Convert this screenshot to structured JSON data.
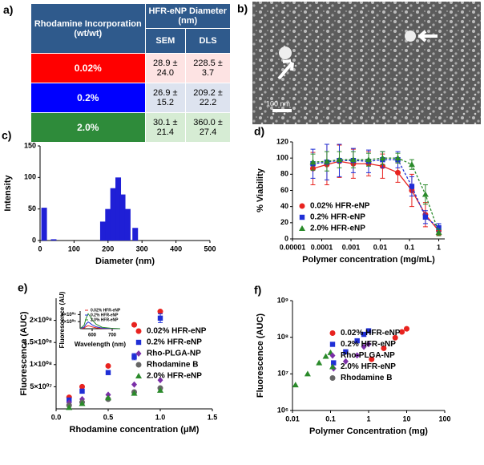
{
  "table": {
    "panel_label": "a)",
    "header": [
      "Rhodamine Incorporation (wt/wt)",
      "HFR-eNP Diameter (nm)"
    ],
    "subheader": [
      "SEM",
      "DLS"
    ],
    "rows": [
      [
        "0.02%",
        "28.9 ± 24.0",
        "228.5 ± 3.7"
      ],
      [
        "0.2%",
        "26.9 ± 15.2",
        "209.2 ± 22.2"
      ],
      [
        "2.0%",
        "30.1 ± 21.4",
        "360.0 ± 27.4"
      ]
    ],
    "row_colors": [
      "#ff0000",
      "#0000ff",
      "#2e8b3a"
    ],
    "cell_colors": [
      "#fde3e3",
      "#dde3ef",
      "#d6ecd4"
    ]
  },
  "image": {
    "panel_label": "b)",
    "scale_label": "100 nm"
  },
  "chart_data": [
    {
      "type": "bar",
      "panel_label": "c)",
      "x_label": "Diameter (nm)",
      "y_label": "Intensity",
      "color": "#1f1fd6",
      "x": [
        12,
        40,
        185,
        200,
        215,
        230,
        243,
        258,
        280
      ],
      "values": [
        52,
        2,
        30,
        50,
        83,
        100,
        73,
        50,
        20
      ],
      "xlim": [
        0,
        500
      ],
      "xticks": [
        0,
        100,
        200,
        300,
        400,
        500
      ],
      "ylim": [
        0,
        150
      ],
      "yticks": [
        0,
        50,
        100,
        150
      ]
    },
    {
      "type": "scatter",
      "panel_label": "d)",
      "x_label": "Polymer concentration (mg/mL)",
      "y_label": "% Viability",
      "xlog": true,
      "connect": "dashed",
      "legend": "lower left",
      "x": [
        5e-05,
        0.00015,
        0.0004,
        0.0012,
        0.004,
        0.012,
        0.04,
        0.12,
        0.35,
        1
      ],
      "series": [
        {
          "name": "0.02% HFR-eNP",
          "color": "#e8231f",
          "marker": "circle",
          "values": [
            87,
            92,
            96,
            93,
            93,
            90,
            82,
            60,
            30,
            10
          ],
          "errors": [
            20,
            25,
            20,
            18,
            15,
            15,
            12,
            20,
            15,
            5
          ]
        },
        {
          "name": "0.2% HFR-eNP",
          "color": "#1f2fd6",
          "marker": "square",
          "values": [
            93,
            95,
            97,
            97,
            96,
            98,
            98,
            65,
            27,
            14
          ],
          "errors": [
            18,
            22,
            20,
            15,
            14,
            10,
            10,
            12,
            8,
            5
          ]
        },
        {
          "name": "2.0% HFR-eNP",
          "color": "#2a8a2a",
          "marker": "triangle",
          "values": [
            95,
            96,
            98,
            98,
            98,
            100,
            100,
            92,
            55,
            8
          ],
          "errors": [
            10,
            12,
            10,
            10,
            8,
            8,
            6,
            6,
            12,
            4
          ]
        }
      ],
      "xlim": [
        1e-05,
        1.6
      ],
      "xticks": [
        1e-05,
        0.0001,
        0.001,
        0.01,
        0.1,
        1
      ],
      "ylim": [
        0,
        120
      ],
      "yticks": [
        0,
        20,
        40,
        60,
        80,
        100,
        120
      ]
    },
    {
      "type": "scatter",
      "panel_label": "e)",
      "x_label": "Rhodamine concentration (μM)",
      "y_label": "Fluorescence (AUC)",
      "legend": "center right",
      "x": [
        0.125,
        0.25,
        0.5,
        0.75,
        1.0
      ],
      "series": [
        {
          "name": "0.02% HFR-eNP",
          "color": "#e8231f",
          "marker": "circle",
          "values": [
            26000000,
            50000000,
            97000000,
            190000000,
            220000000
          ]
        },
        {
          "name": "0.2% HFR-eNP",
          "color": "#1f2fd6",
          "marker": "square",
          "values": [
            20000000,
            40000000,
            82000000,
            118000000,
            205000000
          ],
          "errors": [
            2000000,
            3000000,
            4000000,
            7000000,
            10000000
          ]
        },
        {
          "name": "Rho-PLGA-NP",
          "color": "#7b2fa8",
          "marker": "diamond",
          "values": [
            14000000,
            22000000,
            32000000,
            55000000,
            65000000
          ]
        },
        {
          "name": "Rhodamine B",
          "color": "#666666",
          "marker": "circle",
          "values": [
            8000000,
            15000000,
            22000000,
            38000000,
            47000000
          ]
        },
        {
          "name": "2.0% HFR-eNP",
          "color": "#2a8a2a",
          "marker": "triangle",
          "values": [
            3000000,
            12000000,
            25000000,
            35000000,
            42000000
          ]
        }
      ],
      "xlim": [
        0,
        1.5
      ],
      "xticks": [
        {
          "value": 0,
          "label": "0.0"
        },
        0.5,
        {
          "value": 1,
          "label": "1.0"
        },
        1.5
      ],
      "ylim": [
        0,
        250000000
      ],
      "yticks": [
        {
          "value": 50000000,
          "label": "5×10⁰⁷"
        },
        {
          "value": 100000000,
          "label": "1×10⁰⁸"
        },
        {
          "value": 150000000,
          "label": "1.5×10⁰⁸"
        },
        {
          "value": 200000000,
          "label": "2×10⁰⁸"
        }
      ]
    },
    {
      "type": "line",
      "x_label": "Wavelength (nm)",
      "y_label": "Fluorescence (AU)",
      "legend": "upper right",
      "x": [
        540,
        560,
        570,
        580,
        590,
        600,
        620,
        650,
        700,
        740
      ],
      "series": [
        {
          "name": "0.02% HFR-eNP",
          "color": "#e8231f",
          "values": [
            0,
            40000,
            120000,
            170000,
            140000,
            100000,
            50000,
            16000,
            4000,
            0
          ]
        },
        {
          "name": "0.2% HFR-eNP",
          "color": "#1f2fd6",
          "values": [
            0,
            90000,
            270000,
            380000,
            310000,
            220000,
            110000,
            36000,
            9000,
            0
          ]
        },
        {
          "name": "2.0% HFR-eNP",
          "color": "#2a8a2a",
          "values": [
            0,
            200000,
            600000,
            850000,
            700000,
            500000,
            250000,
            80000,
            20000,
            0
          ]
        }
      ],
      "xlim": [
        540,
        740
      ],
      "xticks": [
        600,
        700
      ],
      "ylim": [
        0,
        1000000
      ],
      "yticks": [
        {
          "value": 400000,
          "label": "4×10⁰⁵"
        },
        {
          "value": 800000,
          "label": "8×10⁰⁵"
        }
      ]
    },
    {
      "type": "scatter",
      "panel_label": "f)",
      "x_label": "Polymer Concentration (mg)",
      "y_label": "Fluorescence (AUC)",
      "xlog": true,
      "ylog": true,
      "legend": "center right",
      "series": [
        {
          "name": "0.02% HFR-eNP",
          "color": "#e8231f",
          "marker": "circle",
          "x": [
            1.2,
            2.5,
            5,
            7.5,
            10
          ],
          "values": [
            25000000,
            50000000,
            97000000,
            140000000,
            170000000
          ]
        },
        {
          "name": "0.2% HFR-eNP",
          "color": "#1f2fd6",
          "marker": "square",
          "x": [
            0.12,
            0.25,
            0.5,
            0.75,
            1
          ],
          "values": [
            20000000,
            40000000,
            80000000,
            120000000,
            150000000
          ]
        },
        {
          "name": "Rho-PLGA-NP",
          "color": "#7b2fa8",
          "marker": "diamond",
          "x": [
            0.12,
            0.25,
            0.5,
            0.75,
            1
          ],
          "values": [
            14000000,
            22000000,
            32000000,
            55000000,
            65000000
          ]
        },
        {
          "name": "2.0% HFR-eNP",
          "color": "#2a8a2a",
          "marker": "triangle",
          "x": [
            0.012,
            0.025,
            0.05,
            0.075,
            0.1
          ],
          "values": [
            5000000,
            10000000,
            20000000,
            30000000,
            38000000
          ]
        },
        {
          "name": "Rhodamine B",
          "color": "#666666",
          "marker": "circle",
          "x": [],
          "values": []
        }
      ],
      "xlim": [
        0.01,
        100
      ],
      "xticks": [
        0.01,
        0.1,
        1,
        10,
        100
      ],
      "ylim": [
        1000000,
        1000000000
      ],
      "yticks": [
        {
          "value": 1000000,
          "label": "10⁶"
        },
        {
          "value": 10000000,
          "label": "10⁷"
        },
        {
          "value": 100000000,
          "label": "10⁸"
        },
        {
          "value": 1000000000,
          "label": "10⁹"
        }
      ]
    }
  ]
}
